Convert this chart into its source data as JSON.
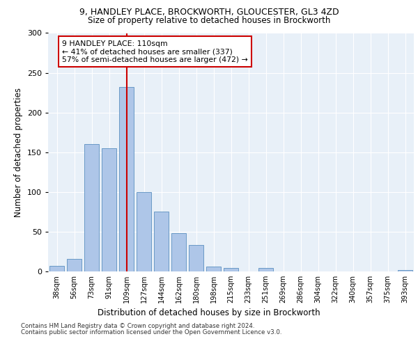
{
  "title1": "9, HANDLEY PLACE, BROCKWORTH, GLOUCESTER, GL3 4ZD",
  "title2": "Size of property relative to detached houses in Brockworth",
  "xlabel": "Distribution of detached houses by size in Brockworth",
  "ylabel": "Number of detached properties",
  "categories": [
    "38sqm",
    "56sqm",
    "73sqm",
    "91sqm",
    "109sqm",
    "127sqm",
    "144sqm",
    "162sqm",
    "180sqm",
    "198sqm",
    "215sqm",
    "233sqm",
    "251sqm",
    "269sqm",
    "286sqm",
    "304sqm",
    "322sqm",
    "340sqm",
    "357sqm",
    "375sqm",
    "393sqm"
  ],
  "values": [
    7,
    16,
    160,
    155,
    232,
    100,
    75,
    48,
    33,
    6,
    4,
    0,
    4,
    0,
    0,
    0,
    0,
    0,
    0,
    0,
    2
  ],
  "bar_color": "#aec6e8",
  "bar_edge_color": "#5a8fc0",
  "red_line_index": 4,
  "annotation_text": "9 HANDLEY PLACE: 110sqm\n← 41% of detached houses are smaller (337)\n57% of semi-detached houses are larger (472) →",
  "annotation_box_color": "#ffffff",
  "annotation_box_edge": "#cc0000",
  "vline_color": "#cc0000",
  "ylim": [
    0,
    300
  ],
  "yticks": [
    0,
    50,
    100,
    150,
    200,
    250,
    300
  ],
  "background_color": "#e8f0f8",
  "footer1": "Contains HM Land Registry data © Crown copyright and database right 2024.",
  "footer2": "Contains public sector information licensed under the Open Government Licence v3.0."
}
